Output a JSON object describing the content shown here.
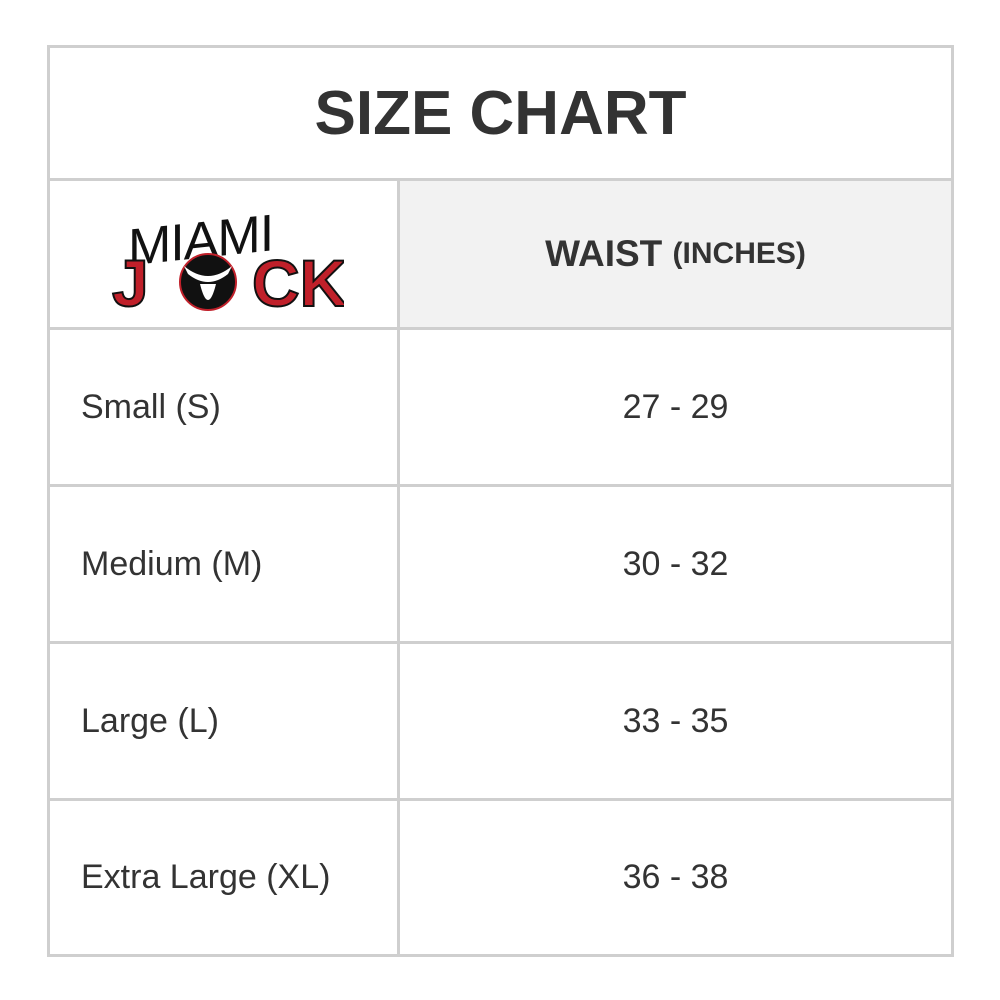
{
  "title": "SIZE CHART",
  "logo": {
    "text_top": "MIAMI",
    "text_bottom": "JOCK",
    "colors": {
      "red": "#c0202a",
      "black": "#111111"
    }
  },
  "header": {
    "col2_label": "WAIST",
    "col2_unit": "(INCHES)"
  },
  "rows": [
    {
      "size": "Small (S)",
      "waist": "27 - 29"
    },
    {
      "size": "Medium (M)",
      "waist": "30 - 32"
    },
    {
      "size": "Large (L)",
      "waist": "33 - 35"
    },
    {
      "size": "Extra Large (XL)",
      "waist": "36 - 38"
    }
  ]
}
